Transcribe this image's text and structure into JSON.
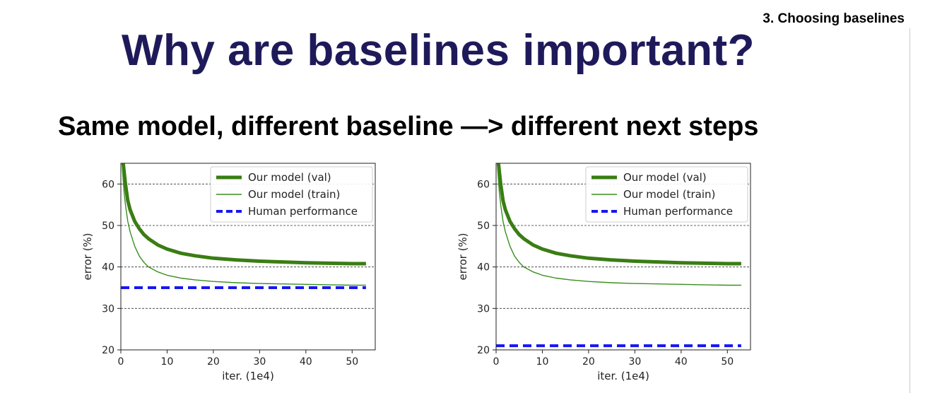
{
  "slide": {
    "section": "3. Choosing baselines",
    "title": "Why are baselines important?",
    "subtitle": "Same model, different baseline —> different next steps"
  },
  "colors": {
    "val": "#3a7d14",
    "train": "#3a8f1e",
    "human": "#1616f0",
    "grid": "#333333"
  },
  "chart_data": [
    {
      "type": "line",
      "xlabel": "iter. (1e4)",
      "ylabel": "error (%)",
      "xlim": [
        0,
        55
      ],
      "ylim": [
        20,
        65
      ],
      "xticks": [
        0,
        10,
        20,
        30,
        40,
        50
      ],
      "yticks": [
        20,
        30,
        40,
        50,
        60
      ],
      "grid": "horizontal-dashed",
      "legend": "top-right",
      "series": [
        {
          "name": "Our model (val)",
          "style": "thick",
          "x": [
            0.5,
            1,
            1.5,
            2,
            3,
            4,
            5,
            6,
            8,
            10,
            13,
            16,
            20,
            25,
            30,
            35,
            40,
            45,
            50,
            53
          ],
          "y": [
            65,
            60,
            56,
            53.8,
            51,
            49.2,
            47.8,
            46.8,
            45.3,
            44.3,
            43.3,
            42.7,
            42.1,
            41.7,
            41.4,
            41.2,
            41.0,
            40.9,
            40.8,
            40.8
          ]
        },
        {
          "name": "Our model (train)",
          "style": "thin",
          "x": [
            0.3,
            0.7,
            1,
            1.5,
            2,
            3,
            4,
            5,
            6,
            8,
            10,
            13,
            16,
            20,
            25,
            30,
            35,
            40,
            45,
            50,
            53
          ],
          "y": [
            64,
            58,
            55,
            51,
            48.5,
            45,
            42.6,
            41.1,
            40.0,
            38.8,
            38.0,
            37.3,
            36.9,
            36.5,
            36.2,
            36.0,
            35.9,
            35.8,
            35.7,
            35.6,
            35.6
          ]
        },
        {
          "name": "Human performance",
          "style": "dashed",
          "x": [
            0,
            53
          ],
          "y": [
            35,
            35
          ]
        }
      ]
    },
    {
      "type": "line",
      "xlabel": "iter. (1e4)",
      "ylabel": "error (%)",
      "xlim": [
        0,
        55
      ],
      "ylim": [
        20,
        65
      ],
      "xticks": [
        0,
        10,
        20,
        30,
        40,
        50
      ],
      "yticks": [
        20,
        30,
        40,
        50,
        60
      ],
      "grid": "horizontal-dashed",
      "legend": "top-right",
      "series": [
        {
          "name": "Our model (val)",
          "style": "thick",
          "x": [
            0.5,
            1,
            1.5,
            2,
            3,
            4,
            5,
            6,
            8,
            10,
            13,
            16,
            20,
            25,
            30,
            35,
            40,
            45,
            50,
            53
          ],
          "y": [
            65,
            60,
            56,
            53.8,
            51,
            49.2,
            47.8,
            46.8,
            45.3,
            44.3,
            43.3,
            42.7,
            42.1,
            41.7,
            41.4,
            41.2,
            41.0,
            40.9,
            40.8,
            40.8
          ]
        },
        {
          "name": "Our model (train)",
          "style": "thin",
          "x": [
            0.3,
            0.7,
            1,
            1.5,
            2,
            3,
            4,
            5,
            6,
            8,
            10,
            13,
            16,
            20,
            25,
            30,
            35,
            40,
            45,
            50,
            53
          ],
          "y": [
            64,
            58,
            55,
            51,
            48.5,
            45,
            42.6,
            41.1,
            40.0,
            38.8,
            38.0,
            37.3,
            36.9,
            36.5,
            36.2,
            36.0,
            35.9,
            35.8,
            35.7,
            35.6,
            35.6
          ]
        },
        {
          "name": "Human performance",
          "style": "dashed",
          "x": [
            0,
            53
          ],
          "y": [
            21,
            21
          ]
        }
      ]
    }
  ]
}
